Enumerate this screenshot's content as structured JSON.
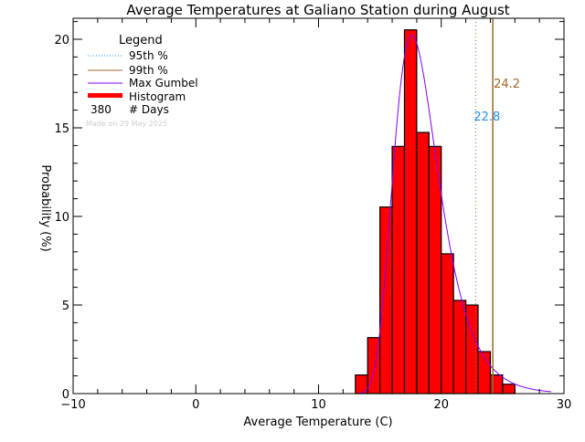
{
  "chart_data": {
    "type": "bar",
    "title": "Average Temperatures at Galiano Station during August",
    "xlabel": "Average Temperature (C)",
    "ylabel": "Probability (%)",
    "xlim": [
      -10,
      30
    ],
    "ylim": [
      0,
      21
    ],
    "xticks": [
      -10,
      0,
      10,
      20,
      30
    ],
    "yticks": [
      0,
      5,
      10,
      15,
      20
    ],
    "bin_edges": [
      13,
      14,
      15,
      16,
      17,
      18,
      19,
      20,
      21,
      22,
      23,
      24,
      25,
      26
    ],
    "values": [
      1.05,
      3.16,
      10.53,
      13.95,
      20.53,
      14.74,
      13.95,
      7.89,
      5.26,
      5.0,
      2.37,
      1.05,
      0.53
    ],
    "gumbel": {
      "mu": 17.6,
      "beta": 1.82
    },
    "p95": {
      "value": 22.8,
      "label": "22.8"
    },
    "p99": {
      "value": 24.2,
      "label": "24.2"
    },
    "legend": {
      "title": "Legend",
      "p95": "95th %",
      "p99": "99th %",
      "gumbel": "Max Gumbel",
      "histogram": "Histogram",
      "days_count": "380",
      "days_label": "# Days",
      "position": "top-left"
    },
    "made_on": "Made on 29 May 2025",
    "colors": {
      "hist": "#ff0000",
      "p95": "#1e90ff",
      "p99": "#a0642a",
      "gumbel": "#8000ff"
    }
  }
}
